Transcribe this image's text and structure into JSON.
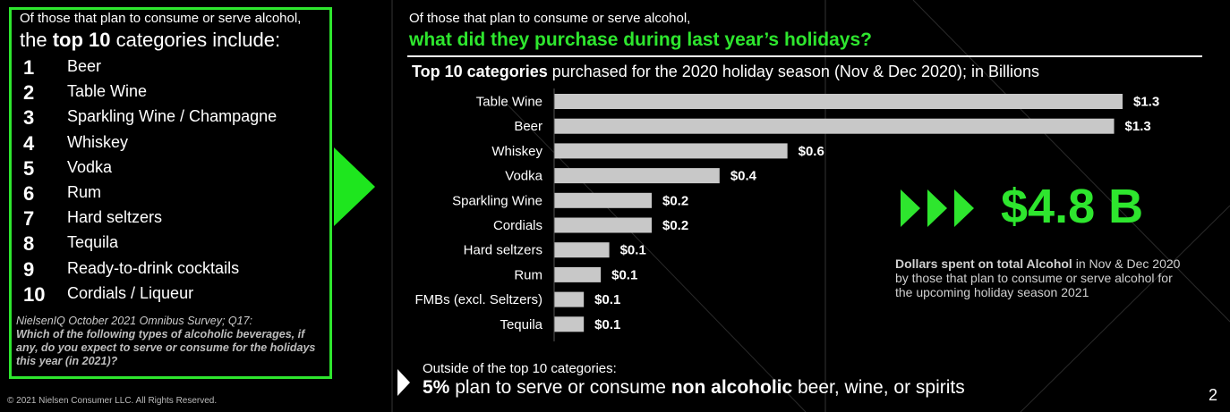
{
  "left_panel": {
    "intro": "Of those that plan to consume or serve alcohol,",
    "heading_pre": "the ",
    "heading_bold": "top 10",
    "heading_post": " categories include:",
    "ranked_list": [
      {
        "rank": "1",
        "label": "Beer"
      },
      {
        "rank": "2",
        "label": "Table Wine"
      },
      {
        "rank": "3",
        "label": "Sparkling Wine / Champagne"
      },
      {
        "rank": "4",
        "label": "Whiskey"
      },
      {
        "rank": "5",
        "label": "Vodka"
      },
      {
        "rank": "6",
        "label": "Rum"
      },
      {
        "rank": "7",
        "label": "Hard seltzers"
      },
      {
        "rank": "8",
        "label": "Tequila"
      },
      {
        "rank": "9",
        "label": "Ready-to-drink cocktails"
      },
      {
        "rank": "10",
        "label": "Cordials / Liqueur"
      }
    ],
    "source": "NielsenIQ October 2021 Omnibus Survey; Q17:",
    "question": "Which of the following types of alcoholic beverages, if any, do you expect to serve or consume for the holidays this year (in 2021)?"
  },
  "right_panel": {
    "intro": "Of those that plan to consume or serve alcohol,",
    "heading": "what did they purchase during last year’s holidays?"
  },
  "chart_data": {
    "type": "bar",
    "orientation": "horizontal",
    "title_bold": "Top 10 categories",
    "title_rest": " purchased for the 2020 holiday season (Nov & Dec 2020); in Billions",
    "categories": [
      "Table Wine",
      "Beer",
      "Whiskey",
      "Vodka",
      "Sparkling Wine",
      "Cordials",
      "Hard seltzers",
      "Rum",
      "FMBs (excl. Seltzers)",
      "Tequila"
    ],
    "values": [
      1.34,
      1.32,
      0.55,
      0.39,
      0.23,
      0.23,
      0.13,
      0.11,
      0.07,
      0.07
    ],
    "value_labels": [
      "$1.3",
      "$1.3",
      "$0.6",
      "$0.4",
      "$0.2",
      "$0.2",
      "$0.1",
      "$0.1",
      "$0.1",
      "$0.1"
    ],
    "xlim": [
      0,
      1.34
    ],
    "unit": "Billions USD",
    "bar_color": "#c8c8c8"
  },
  "total": {
    "value": "$4.8 B",
    "desc_bold": "Dollars spent on total Alcohol",
    "desc_rest": " in Nov & Dec 2020 by those that plan to consume or serve alcohol for the upcoming holiday season 2021"
  },
  "outside": {
    "intro": "Outside of the top 10 categories:",
    "pct": "5%",
    "mid": " plan to serve or consume ",
    "bold": "non alcoholic",
    "end": " beer, wine, or spirits"
  },
  "footer": {
    "copyright": "© 2021 Nielsen Consumer LLC. All Rights Reserved.",
    "page": "2"
  },
  "colors": {
    "accent": "#2ee62e",
    "background": "#000000",
    "text": "#ffffff"
  }
}
